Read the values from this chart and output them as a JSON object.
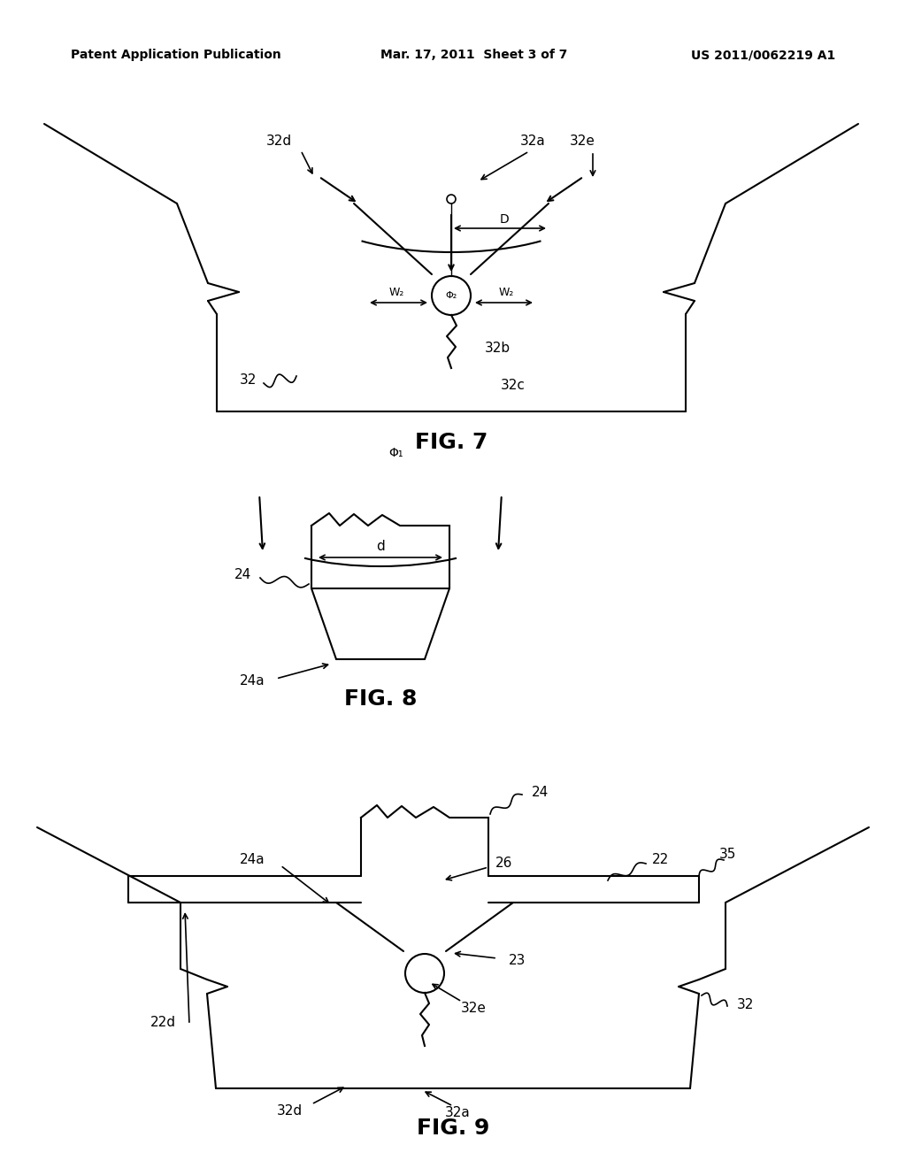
{
  "header_left": "Patent Application Publication",
  "header_mid": "Mar. 17, 2011  Sheet 3 of 7",
  "header_right": "US 2011/0062219 A1",
  "fig7_label": "FIG. 7",
  "fig8_label": "FIG. 8",
  "fig9_label": "FIG. 9",
  "bg_color": "#ffffff",
  "line_color": "#000000",
  "font_size_header": 11,
  "font_size_fig": 16,
  "font_size_label": 11
}
